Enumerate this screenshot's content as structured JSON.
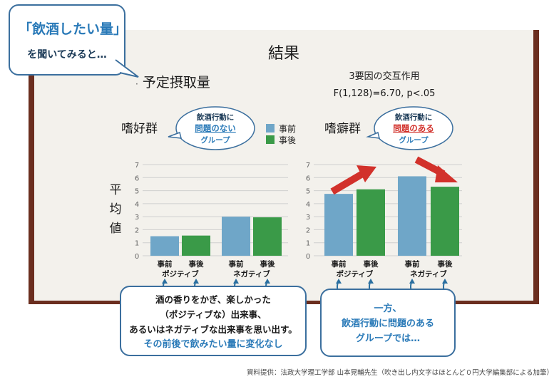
{
  "title": "結果",
  "subtitle": "予定摂取量",
  "stats_line1": "3要因の交互作用",
  "stats_line2": "F(1,128)=6.70, p<.05",
  "ylabel": "平均値",
  "legend": [
    {
      "label": "事前",
      "color": "#6fa6c8"
    },
    {
      "label": "事後",
      "color": "#3a9a48"
    }
  ],
  "chart_data": [
    {
      "type": "bar",
      "group_label": "嗜好群",
      "categories": [
        "ポジティブ",
        "ネガティブ"
      ],
      "series": [
        {
          "name": "事前",
          "values": [
            1.5,
            3.0
          ]
        },
        {
          "name": "事後",
          "values": [
            1.55,
            2.95
          ]
        }
      ],
      "ylim": [
        0,
        7
      ],
      "yticks": [
        0,
        1,
        2,
        3,
        4,
        5,
        6,
        7
      ],
      "grid": true
    },
    {
      "type": "bar",
      "group_label": "嗜癖群",
      "categories": [
        "ポジティブ",
        "ネガティブ"
      ],
      "series": [
        {
          "name": "事前",
          "values": [
            4.75,
            6.1
          ]
        },
        {
          "name": "事後",
          "values": [
            5.1,
            5.3
          ]
        }
      ],
      "ylim": [
        0,
        7
      ],
      "yticks": [
        0,
        1,
        2,
        3,
        4,
        5,
        6,
        7
      ],
      "grid": true
    }
  ],
  "left_group_bubble": [
    "飲酒行動に",
    "問題のない",
    "グループ"
  ],
  "right_group_bubble": [
    "飲酒行動に",
    "問題のある",
    "グループ"
  ],
  "top_bubble": {
    "line1": "「飲酒したい量」",
    "line2": "を聞いてみると…"
  },
  "bottom_left_bubble": [
    "酒の香りをかぎ、楽しかった",
    "（ポジティブな）出来事、",
    "あるいはネガティブな出来事を思い出す。",
    "その前後で飲みたい量に変化なし"
  ],
  "bottom_right_bubble": [
    "一方、",
    "飲酒行動に問題のある",
    "グループでは…"
  ],
  "credit": "資料提供：法政大学理工学部 山本晃輔先生（吹き出し内文字はほとんど０円大学編集部による加筆）",
  "colors": {
    "accent": "#2a7ab8",
    "alert": "#d2312b",
    "pre": "#6fa6c8",
    "post": "#3a9a48",
    "frame": "#6b2e1f"
  }
}
